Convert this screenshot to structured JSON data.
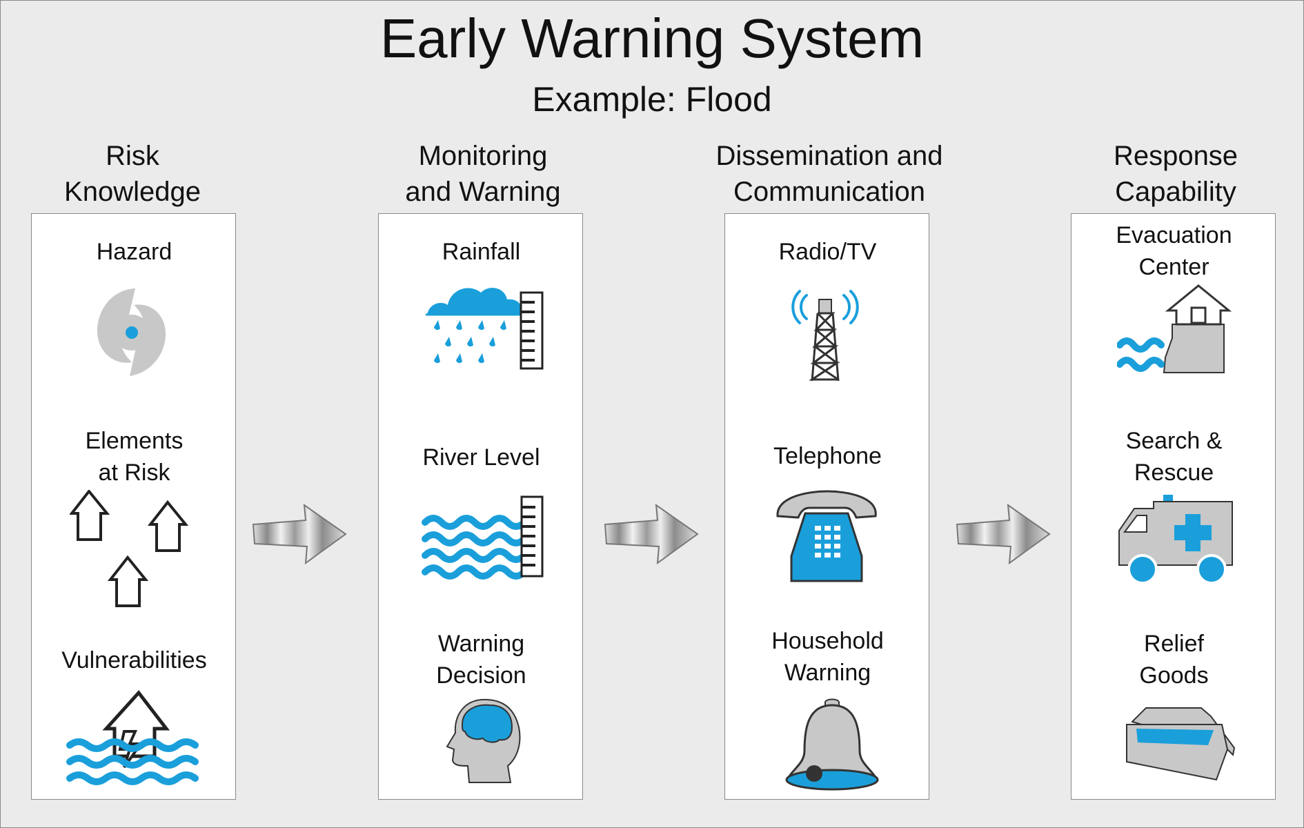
{
  "title": "Early Warning System",
  "subtitle": "Example: Flood",
  "colors": {
    "accent": "#1a9fdb",
    "gray": "#c8c8c8",
    "outline": "#333333"
  },
  "columns": [
    {
      "heading": [
        "Risk",
        "Knowledge"
      ],
      "items": [
        {
          "label": [
            "Hazard"
          ],
          "icon": "hurricane-icon"
        },
        {
          "label": [
            "Elements",
            "at Risk"
          ],
          "icon": "houses-icon"
        },
        {
          "label": [
            "Vulnerabilities"
          ],
          "icon": "flood-house-icon"
        }
      ]
    },
    {
      "heading": [
        "Monitoring",
        "and Warning"
      ],
      "items": [
        {
          "label": [
            "Rainfall"
          ],
          "icon": "rain-gauge-icon"
        },
        {
          "label": [
            "River Level"
          ],
          "icon": "river-gauge-icon"
        },
        {
          "label": [
            "Warning",
            "Decision"
          ],
          "icon": "head-brain-icon"
        }
      ]
    },
    {
      "heading": [
        "Dissemination and",
        "Communication"
      ],
      "items": [
        {
          "label": [
            "Radio/TV"
          ],
          "icon": "radio-tower-icon"
        },
        {
          "label": [
            "Telephone"
          ],
          "icon": "telephone-icon"
        },
        {
          "label": [
            "Household",
            "Warning"
          ],
          "icon": "bell-icon"
        }
      ]
    },
    {
      "heading": [
        "Response",
        "Capability"
      ],
      "items": [
        {
          "label": [
            "Evacuation",
            "Center"
          ],
          "icon": "evacuation-center-icon"
        },
        {
          "label": [
            "Search &",
            "Rescue"
          ],
          "icon": "ambulance-icon"
        },
        {
          "label": [
            "Relief",
            "Goods"
          ],
          "icon": "relief-box-icon"
        }
      ]
    }
  ]
}
